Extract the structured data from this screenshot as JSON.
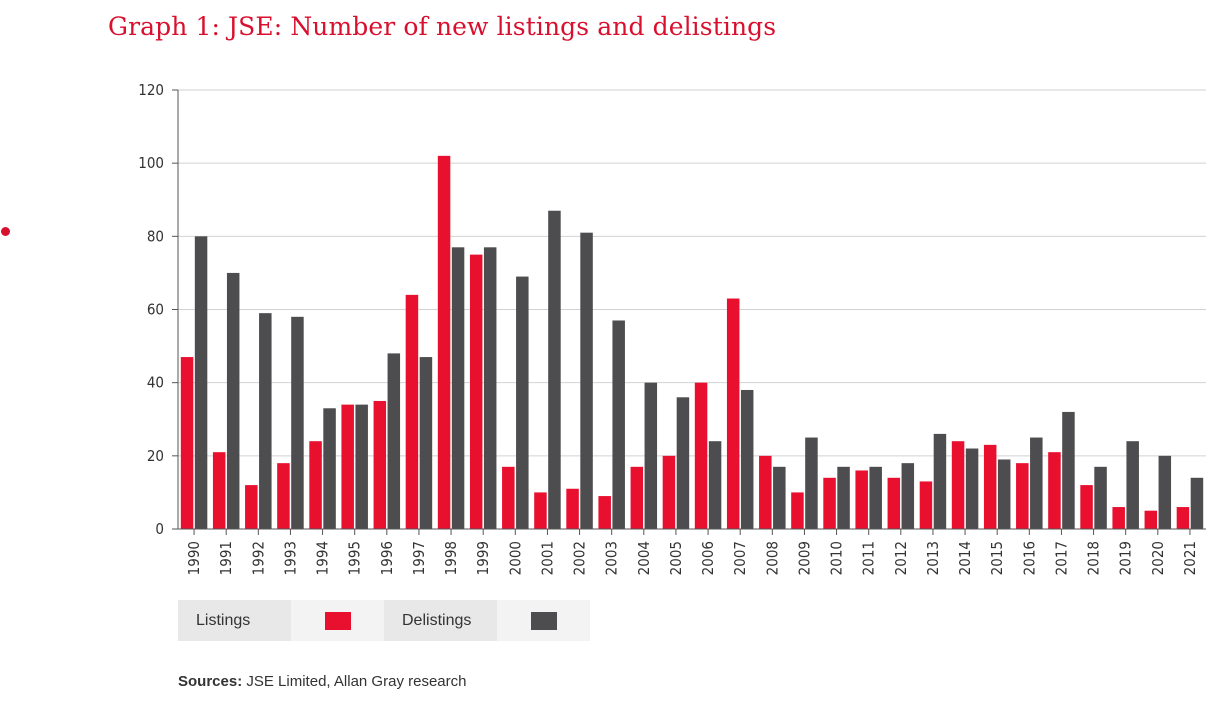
{
  "title": "Graph 1: JSE: Number of new listings and delistings",
  "sources": {
    "label": "Sources:",
    "text": "JSE Limited, Allan Gray research"
  },
  "legend": [
    {
      "label": "Listings",
      "color": "#e8102e"
    },
    {
      "label": "Delistings",
      "color": "#4d4d4f"
    }
  ],
  "chart_data": {
    "type": "bar",
    "title": "Graph 1: JSE: Number of new listings and delistings",
    "xlabel": "",
    "ylabel": "",
    "ylim": [
      0,
      120
    ],
    "yticks": [
      0,
      20,
      40,
      60,
      80,
      100,
      120
    ],
    "grid": true,
    "legend_position": "bottom-left",
    "categories": [
      "1990",
      "1991",
      "1992",
      "1993",
      "1994",
      "1995",
      "1996",
      "1997",
      "1998",
      "1999",
      "2000",
      "2001",
      "2002",
      "2003",
      "2004",
      "2005",
      "2006",
      "2007",
      "2008",
      "2009",
      "2010",
      "2011",
      "2012",
      "2013",
      "2014",
      "2015",
      "2016",
      "2017",
      "2018",
      "2019",
      "2020",
      "2021"
    ],
    "series": [
      {
        "name": "Listings",
        "color": "#e8102e",
        "values": [
          47,
          21,
          12,
          18,
          24,
          34,
          35,
          64,
          102,
          75,
          17,
          10,
          11,
          9,
          17,
          20,
          40,
          63,
          20,
          10,
          14,
          16,
          14,
          13,
          24,
          23,
          18,
          21,
          12,
          6,
          5,
          6
        ]
      },
      {
        "name": "Delistings",
        "color": "#4d4d4f",
        "values": [
          80,
          70,
          59,
          58,
          33,
          34,
          48,
          47,
          77,
          77,
          69,
          87,
          81,
          57,
          40,
          36,
          24,
          38,
          17,
          25,
          17,
          17,
          18,
          26,
          22,
          19,
          25,
          32,
          17,
          24,
          20,
          14
        ]
      }
    ]
  }
}
